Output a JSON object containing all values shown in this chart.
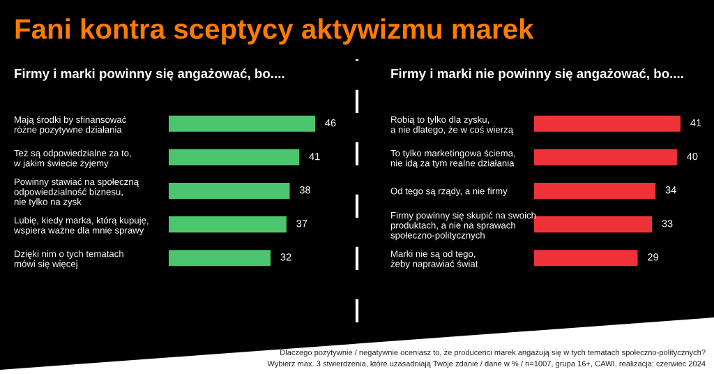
{
  "chart_data": [
    {
      "type": "bar",
      "orientation": "horizontal",
      "title": "Fani kontra sceptycy aktywizmu marek",
      "subtitle": "Firmy i marki powinny się angażować, bo....",
      "categories": [
        "Mają środki by sfinansować\nróżne pozytywne działania",
        "Też są odpowiedzialne za to,\nw jakim świecie żyjemy",
        "Powinny stawiać na społeczną\nodpowiedzialność biznesu,\nnie tylko na zysk",
        "Lubię, kiedy marka, którą kupuję,\nwspiera ważne dla mnie sprawy",
        "Dzięki nim o tych tematach\nmówi się więcej"
      ],
      "values": [
        46,
        41,
        38,
        37,
        32
      ],
      "color": "#4cc66e",
      "data_labels": true
    },
    {
      "type": "bar",
      "orientation": "horizontal",
      "title": "Firmy i marki nie powinny się angażować, bo....",
      "categories": [
        "Robią to tylko dla zysku,\na nie dlatego, że w coś wierzą",
        "To tylko marketingowa ściema,\nnie idą za tym realne działania",
        "Od tego są rządy, a nie firmy",
        "Firmy powinny się skupić na swoich\nproduktach, a nie na sprawach\nspołeczno-politycznych",
        "Marki nie są od tego,\nżeby naprawiać świat"
      ],
      "values": [
        41,
        40,
        34,
        33,
        29
      ],
      "color": "#ee3338",
      "data_labels": true,
      "annotations": [
        "Dlaczego pozytywnie / negatywnie oceniasz to, że producenci marek angażują się w tych tematach społeczno-politycznych?",
        "Wybierz max. 3 stwierdzenia, które uzasadniają Twoje zdanie / dane w % / n=1007, grupa 16+, CAWI, realizacja: czerwiec 2024"
      ]
    }
  ]
}
